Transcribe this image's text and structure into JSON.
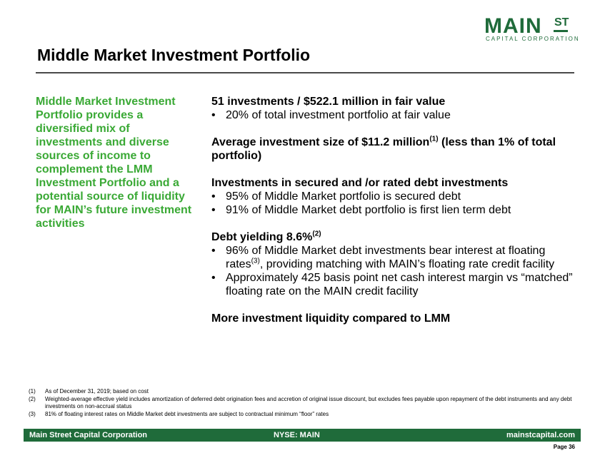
{
  "logo": {
    "main": "MAIN",
    "st": "ST",
    "sub": "CAPITAL CORPORATION"
  },
  "title": "Middle Market Investment Portfolio",
  "sidebar": {
    "text": "Middle Market Investment Portfolio provides a diversified mix of investments and diverse sources of income to complement the LMM Investment Portfolio and a potential source of liquidity for MAIN’s future investment activities"
  },
  "main": {
    "h1": "51 investments / $522.1 million in fair value",
    "b1": "20% of total investment portfolio at fair value",
    "h2_pre": "Average investment size of $11.2 million",
    "h2_sup": "(1)",
    "h2_post": " (less than 1% of total portfolio)",
    "h3": "Investments in secured and /or rated debt investments",
    "b3a": "95% of Middle Market portfolio is secured debt",
    "b3b": "91% of Middle Market debt portfolio is first lien term debt",
    "h4_pre": "Debt yielding 8.6%",
    "h4_sup": "(2)",
    "b4a_pre": "96% of Middle Market debt investments bear interest at floating rates",
    "b4a_sup": "(3)",
    "b4a_post": ", providing matching with MAIN’s floating rate credit facility",
    "b4b": "Approximately 425 basis point net cash interest margin vs “matched” floating rate on the MAIN credit facility",
    "h5": "More investment liquidity compared to LMM"
  },
  "footnotes": [
    {
      "num": "(1)",
      "text": "As of December 31, 2019; based on cost"
    },
    {
      "num": "(2)",
      "text": "Weighted-average effective yield includes amortization of deferred debt origination fees and accretion of original issue discount, but excludes fees payable upon repayment of the debt instruments and any debt investments on non-accrual status"
    },
    {
      "num": "(3)",
      "text": "81% of floating interest rates on Middle Market debt investments are subject to contractual minimum “floor” rates"
    }
  ],
  "footer": {
    "left": "Main Street Capital Corporation",
    "center": "NYSE: MAIN",
    "right": "mainstcapital.com"
  },
  "page": "Page 36",
  "colors": {
    "brand_green": "#1f6b3a",
    "accent_green": "#3aa935"
  }
}
